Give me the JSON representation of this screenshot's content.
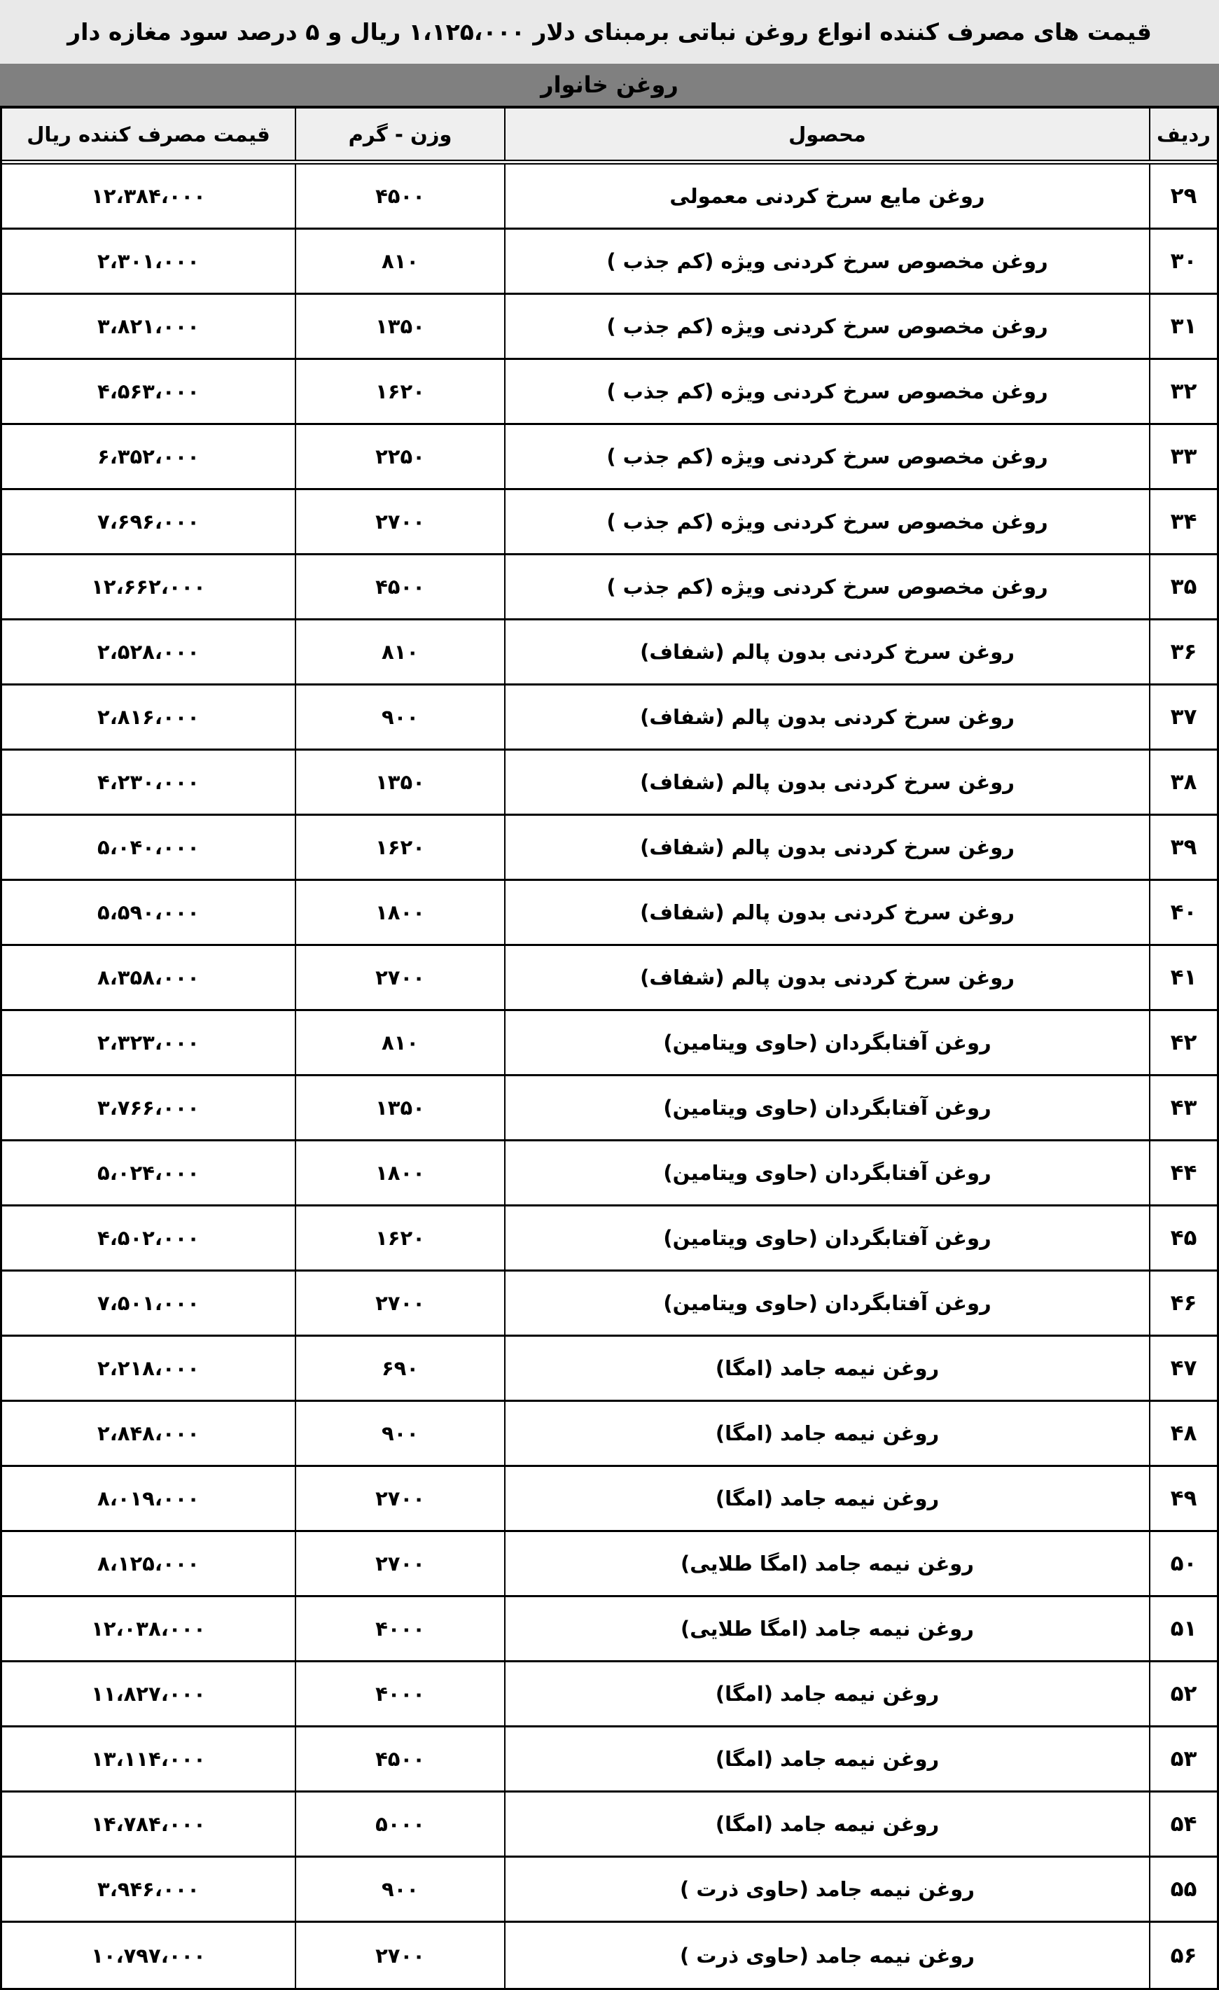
{
  "title": "قیمت های مصرف کننده انواع روغن نباتی  برمبنای دلار ۱،۱۲۵،۰۰۰ ریال و ۵ درصد سود مغازه دار",
  "section": "روغن خانوار",
  "columns": {
    "row": "ردیف",
    "product": "محصول",
    "weight": "وزن - گرم",
    "price": "قیمت مصرف کننده ریال"
  },
  "colors": {
    "title_bg": "#e9e9e9",
    "band_bg": "#808080",
    "header_bg": "#efefef",
    "row_bg": "#ffffff",
    "border": "#000000",
    "text": "#000000"
  },
  "table": {
    "rows": [
      {
        "no": "۲۹",
        "product": "روغن مایع سرخ کردنی معمولی",
        "weight": "۴۵۰۰",
        "price": "۱۲،۳۸۴،۰۰۰"
      },
      {
        "no": "۳۰",
        "product": "روغن مخصوص سرخ کردنی ویژه (کم جذب )",
        "weight": "۸۱۰",
        "price": "۲،۳۰۱،۰۰۰"
      },
      {
        "no": "۳۱",
        "product": "روغن مخصوص سرخ کردنی ویژه (کم جذب )",
        "weight": "۱۳۵۰",
        "price": "۳،۸۲۱،۰۰۰"
      },
      {
        "no": "۳۲",
        "product": "روغن مخصوص سرخ کردنی ویژه (کم جذب )",
        "weight": "۱۶۲۰",
        "price": "۴،۵۶۳،۰۰۰"
      },
      {
        "no": "۳۳",
        "product": "روغن مخصوص سرخ کردنی ویژه (کم جذب )",
        "weight": "۲۲۵۰",
        "price": "۶،۳۵۲،۰۰۰"
      },
      {
        "no": "۳۴",
        "product": "روغن مخصوص سرخ کردنی ویژه (کم جذب )",
        "weight": "۲۷۰۰",
        "price": "۷،۶۹۶،۰۰۰"
      },
      {
        "no": "۳۵",
        "product": "روغن مخصوص سرخ کردنی ویژه (کم جذب )",
        "weight": "۴۵۰۰",
        "price": "۱۲،۶۶۲،۰۰۰"
      },
      {
        "no": "۳۶",
        "product": "روغن سرخ کردنی بدون پالم (شفاف)",
        "weight": "۸۱۰",
        "price": "۲،۵۲۸،۰۰۰"
      },
      {
        "no": "۳۷",
        "product": "روغن سرخ کردنی بدون پالم (شفاف)",
        "weight": "۹۰۰",
        "price": "۲،۸۱۶،۰۰۰"
      },
      {
        "no": "۳۸",
        "product": "روغن سرخ کردنی بدون پالم (شفاف)",
        "weight": "۱۳۵۰",
        "price": "۴،۲۳۰،۰۰۰"
      },
      {
        "no": "۳۹",
        "product": "روغن سرخ کردنی بدون پالم (شفاف)",
        "weight": "۱۶۲۰",
        "price": "۵،۰۴۰،۰۰۰"
      },
      {
        "no": "۴۰",
        "product": "روغن سرخ کردنی بدون پالم (شفاف)",
        "weight": "۱۸۰۰",
        "price": "۵،۵۹۰،۰۰۰"
      },
      {
        "no": "۴۱",
        "product": "روغن سرخ کردنی بدون پالم (شفاف)",
        "weight": "۲۷۰۰",
        "price": "۸،۳۵۸،۰۰۰"
      },
      {
        "no": "۴۲",
        "product": "روغن آفتابگردان (حاوی ویتامین)",
        "weight": "۸۱۰",
        "price": "۲،۳۲۳،۰۰۰"
      },
      {
        "no": "۴۳",
        "product": "روغن آفتابگردان (حاوی ویتامین)",
        "weight": "۱۳۵۰",
        "price": "۳،۷۶۶،۰۰۰"
      },
      {
        "no": "۴۴",
        "product": "روغن آفتابگردان (حاوی ویتامین)",
        "weight": "۱۸۰۰",
        "price": "۵،۰۲۴،۰۰۰"
      },
      {
        "no": "۴۵",
        "product": "روغن آفتابگردان (حاوی ویتامین)",
        "weight": "۱۶۲۰",
        "price": "۴،۵۰۲،۰۰۰"
      },
      {
        "no": "۴۶",
        "product": "روغن آفتابگردان (حاوی ویتامین)",
        "weight": "۲۷۰۰",
        "price": "۷،۵۰۱،۰۰۰"
      },
      {
        "no": "۴۷",
        "product": "روغن نیمه جامد (امگا)",
        "weight": "۶۹۰",
        "price": "۲،۲۱۸،۰۰۰"
      },
      {
        "no": "۴۸",
        "product": "روغن نیمه جامد (امگا)",
        "weight": "۹۰۰",
        "price": "۲،۸۴۸،۰۰۰"
      },
      {
        "no": "۴۹",
        "product": "روغن نیمه جامد (امگا)",
        "weight": "۲۷۰۰",
        "price": "۸،۰۱۹،۰۰۰"
      },
      {
        "no": "۵۰",
        "product": "روغن نیمه جامد (امگا طلایی)",
        "weight": "۲۷۰۰",
        "price": "۸،۱۲۵،۰۰۰"
      },
      {
        "no": "۵۱",
        "product": "روغن نیمه جامد (امگا طلایی)",
        "weight": "۴۰۰۰",
        "price": "۱۲،۰۳۸،۰۰۰"
      },
      {
        "no": "۵۲",
        "product": "روغن نیمه جامد (امگا)",
        "weight": "۴۰۰۰",
        "price": "۱۱،۸۲۷،۰۰۰"
      },
      {
        "no": "۵۳",
        "product": "روغن نیمه جامد (امگا)",
        "weight": "۴۵۰۰",
        "price": "۱۳،۱۱۴،۰۰۰"
      },
      {
        "no": "۵۴",
        "product": "روغن نیمه جامد (امگا)",
        "weight": "۵۰۰۰",
        "price": "۱۴،۷۸۴،۰۰۰"
      },
      {
        "no": "۵۵",
        "product": "روغن نیمه جامد (حاوی ذرت )",
        "weight": "۹۰۰",
        "price": "۳،۹۴۶،۰۰۰"
      },
      {
        "no": "۵۶",
        "product": "روغن نیمه جامد (حاوی ذرت )",
        "weight": "۲۷۰۰",
        "price": "۱۰،۷۹۷،۰۰۰"
      }
    ]
  }
}
